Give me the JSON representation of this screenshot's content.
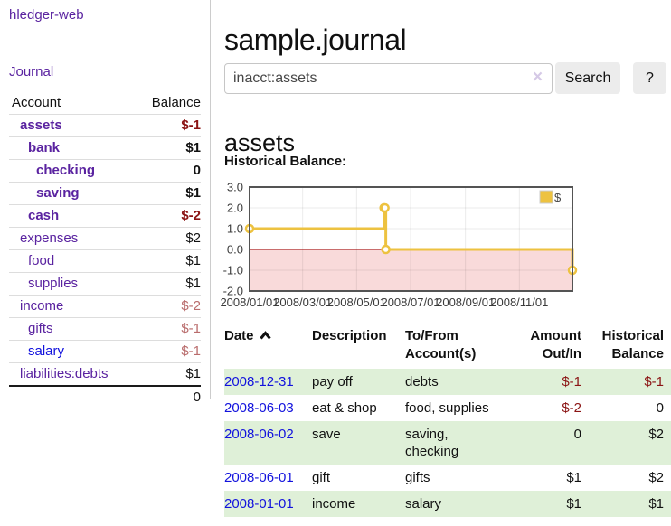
{
  "sidebar": {
    "brand": "hledger-web",
    "nav": [
      {
        "label": "Journal"
      }
    ],
    "accounts_table": {
      "headers": {
        "account": "Account",
        "balance": "Balance"
      },
      "rows": [
        {
          "account": "assets",
          "depth": 1,
          "bold": true,
          "balance": "$-1",
          "balance_style": "neg-strong"
        },
        {
          "account": "bank",
          "depth": 2,
          "bold": true,
          "balance": "$1",
          "balance_style": "pos"
        },
        {
          "account": "checking",
          "depth": 3,
          "bold": true,
          "balance": "0",
          "balance_style": "pos"
        },
        {
          "account": "saving",
          "depth": 3,
          "bold": true,
          "balance": "$1",
          "balance_style": "pos"
        },
        {
          "account": "cash",
          "depth": 2,
          "bold": true,
          "balance": "$-2",
          "balance_style": "neg-strong"
        },
        {
          "account": "expenses",
          "depth": 1,
          "bold": false,
          "balance": "$2",
          "balance_style": "pos"
        },
        {
          "account": "food",
          "depth": 2,
          "bold": false,
          "balance": "$1",
          "balance_style": "pos"
        },
        {
          "account": "supplies",
          "depth": 2,
          "bold": false,
          "balance": "$1",
          "balance_style": "pos"
        },
        {
          "account": "income",
          "depth": 1,
          "bold": false,
          "balance": "$-2",
          "balance_style": "neg-soft"
        },
        {
          "account": "gifts",
          "depth": 2,
          "bold": false,
          "balance": "$-1",
          "balance_style": "neg-soft"
        },
        {
          "account": "salary",
          "depth": 2,
          "bold": false,
          "link_color": "blue",
          "balance": "$-1",
          "balance_style": "neg-soft"
        },
        {
          "account": "liabilities:debts",
          "depth": 1,
          "bold": false,
          "balance": "$1",
          "balance_style": "pos"
        }
      ],
      "total": "0"
    }
  },
  "header": {
    "title": "sample.journal"
  },
  "search": {
    "value": "inacct:assets",
    "clear_icon": "×",
    "button": "Search",
    "help_button": "?"
  },
  "account_page": {
    "heading": "assets",
    "chart_label": "Historical Balance:"
  },
  "chart_data": {
    "type": "line",
    "step": true,
    "title": "Historical Balance:",
    "x_type": "date",
    "xlim": [
      "2008-01-01",
      "2008-12-31"
    ],
    "ylim": [
      -2,
      3
    ],
    "grid": true,
    "y_ticks": [
      {
        "value": 3,
        "label": "3.0"
      },
      {
        "value": 2,
        "label": "2.0"
      },
      {
        "value": 1,
        "label": "1.0"
      },
      {
        "value": 0,
        "label": "0.0"
      },
      {
        "value": -1,
        "label": "-1.0"
      },
      {
        "value": -2,
        "label": "-2.0"
      }
    ],
    "x_ticks": [
      {
        "value": "2008-01-01",
        "label": "2008/01/01"
      },
      {
        "value": "2008-03-01",
        "label": "2008/03/01"
      },
      {
        "value": "2008-05-01",
        "label": "2008/05/01"
      },
      {
        "value": "2008-07-01",
        "label": "2008/07/01"
      },
      {
        "value": "2008-09-01",
        "label": "2008/09/01"
      },
      {
        "value": "2008-11-01",
        "label": "2008/11/01"
      }
    ],
    "series": [
      {
        "name": "$",
        "color": "#edc240",
        "points": [
          {
            "x": "2008-01-01",
            "y": 1
          },
          {
            "x": "2008-06-01",
            "y": 2
          },
          {
            "x": "2008-06-02",
            "y": 2
          },
          {
            "x": "2008-06-03",
            "y": 0
          },
          {
            "x": "2008-12-31",
            "y": -1
          }
        ]
      }
    ],
    "legend": {
      "label": "$",
      "swatch_color": "#edc240",
      "position": "top-right"
    },
    "negative_region_fill": "#f9dada",
    "zero_line_color": "#990000",
    "plot_border_color": "#545454"
  },
  "transactions": {
    "columns": [
      {
        "line1": "Date",
        "line2": "",
        "align": "left",
        "has_sort_icon": true
      },
      {
        "line1": "Description",
        "line2": "",
        "align": "left"
      },
      {
        "line1": "To/From",
        "line2": "Account(s)",
        "align": "left"
      },
      {
        "line1": "Amount",
        "line2": "Out/In",
        "align": "right"
      },
      {
        "line1": "Historical",
        "line2": "Balance",
        "align": "right"
      }
    ],
    "rows": [
      {
        "date": "2008-12-31",
        "description": "pay off",
        "accounts": "debts",
        "amount": "$-1",
        "amount_negative": true,
        "balance": "$-1",
        "balance_negative": true
      },
      {
        "date": "2008-06-03",
        "description": "eat & shop",
        "accounts": "food, supplies",
        "amount": "$-2",
        "amount_negative": true,
        "balance": "0",
        "balance_negative": false
      },
      {
        "date": "2008-06-02",
        "description": "save",
        "accounts": "saving, checking",
        "amount": "0",
        "amount_negative": false,
        "balance": "$2",
        "balance_negative": false
      },
      {
        "date": "2008-06-01",
        "description": "gift",
        "accounts": "gifts",
        "amount": "$1",
        "amount_negative": false,
        "balance": "$2",
        "balance_negative": false
      },
      {
        "date": "2008-01-01",
        "description": "income",
        "accounts": "salary",
        "amount": "$1",
        "amount_negative": false,
        "balance": "$1",
        "balance_negative": false
      }
    ]
  },
  "colors": {
    "link_purple": "#5a23a0",
    "link_blue": "#1212dd",
    "negative_strong": "#8b1414",
    "negative_soft": "#b96c6c",
    "row_green": "#dff0d8",
    "chart_line_gold": "#edc240",
    "chart_negative_pink": "#f9dada",
    "chart_zero_line": "#990000"
  }
}
